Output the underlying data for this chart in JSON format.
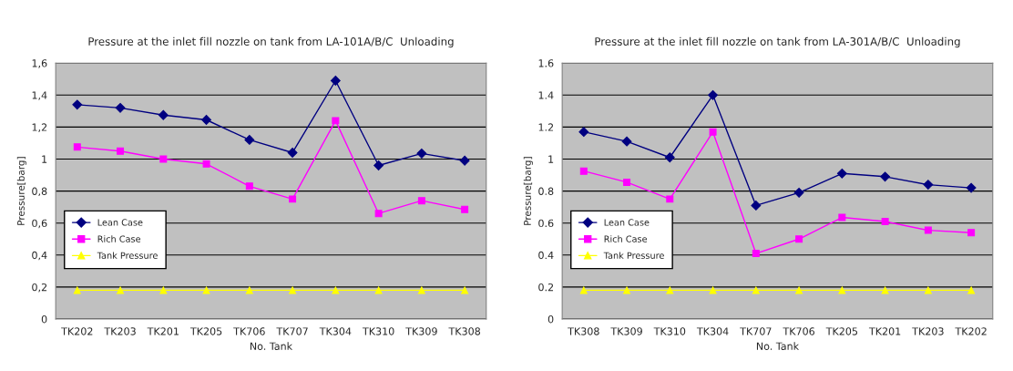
{
  "chart_data": [
    {
      "type": "line",
      "title": "Pressure at the inlet fill nozzle on tank from LA-101A/B/C  Unloading",
      "xlabel": "No. Tank",
      "ylabel": "Pressure[barg]",
      "categories": [
        "TK202",
        "TK203",
        "TK201",
        "TK205",
        "TK706",
        "TK707",
        "TK304",
        "TK310",
        "TK309",
        "TK308"
      ],
      "series": [
        {
          "name": "Lean Case",
          "color": "#000080",
          "marker": "diamond",
          "values": [
            1.34,
            1.32,
            1.275,
            1.245,
            1.12,
            1.04,
            1.49,
            0.96,
            1.035,
            0.99
          ]
        },
        {
          "name": "Rich Case",
          "color": "#ff00ff",
          "marker": "square",
          "values": [
            1.075,
            1.05,
            1.0,
            0.97,
            0.83,
            0.75,
            1.24,
            0.66,
            0.74,
            0.685
          ]
        },
        {
          "name": "Tank Pressure",
          "color": "#ffff00",
          "marker": "triangle",
          "values": [
            0.18,
            0.18,
            0.18,
            0.18,
            0.18,
            0.18,
            0.18,
            0.18,
            0.18,
            0.18
          ]
        }
      ],
      "ylim": [
        0,
        1.6
      ],
      "yticks": [
        {
          "value": 0,
          "label": "0"
        },
        {
          "value": 0.2,
          "label": "0,2"
        },
        {
          "value": 0.4,
          "label": "0,4"
        },
        {
          "value": 0.6,
          "label": "0,6"
        },
        {
          "value": 0.8,
          "label": "0,8"
        },
        {
          "value": 1,
          "label": "1"
        },
        {
          "value": 1.2,
          "label": "1,2"
        },
        {
          "value": 1.4,
          "label": "1,4"
        },
        {
          "value": 1.6,
          "label": "1,6"
        }
      ],
      "grid": "y",
      "legend": "left"
    },
    {
      "type": "line",
      "title": "Pressure at the inlet fill nozzle on tank from LA-301A/B/C  Unloading",
      "xlabel": "No. Tank",
      "ylabel": "Pressure[barg]",
      "categories": [
        "TK308",
        "TK309",
        "TK310",
        "TK304",
        "TK707",
        "TK706",
        "TK205",
        "TK201",
        "TK203",
        "TK202"
      ],
      "series": [
        {
          "name": "Lean Case",
          "color": "#000080",
          "marker": "diamond",
          "values": [
            1.17,
            1.11,
            1.01,
            1.4,
            0.71,
            0.79,
            0.91,
            0.89,
            0.84,
            0.82
          ]
        },
        {
          "name": "Rich Case",
          "color": "#ff00ff",
          "marker": "square",
          "values": [
            0.925,
            0.855,
            0.75,
            1.17,
            0.41,
            0.5,
            0.635,
            0.61,
            0.555,
            0.54
          ]
        },
        {
          "name": "Tank Pressure",
          "color": "#ffff00",
          "marker": "triangle",
          "values": [
            0.18,
            0.18,
            0.18,
            0.18,
            0.18,
            0.18,
            0.18,
            0.18,
            0.18,
            0.18
          ]
        }
      ],
      "ylim": [
        0,
        1.6
      ],
      "yticks": [
        0,
        0.2,
        0.4,
        0.6,
        0.8,
        1,
        1.2,
        1.4,
        1.6
      ],
      "grid": "y",
      "legend": "left"
    }
  ]
}
